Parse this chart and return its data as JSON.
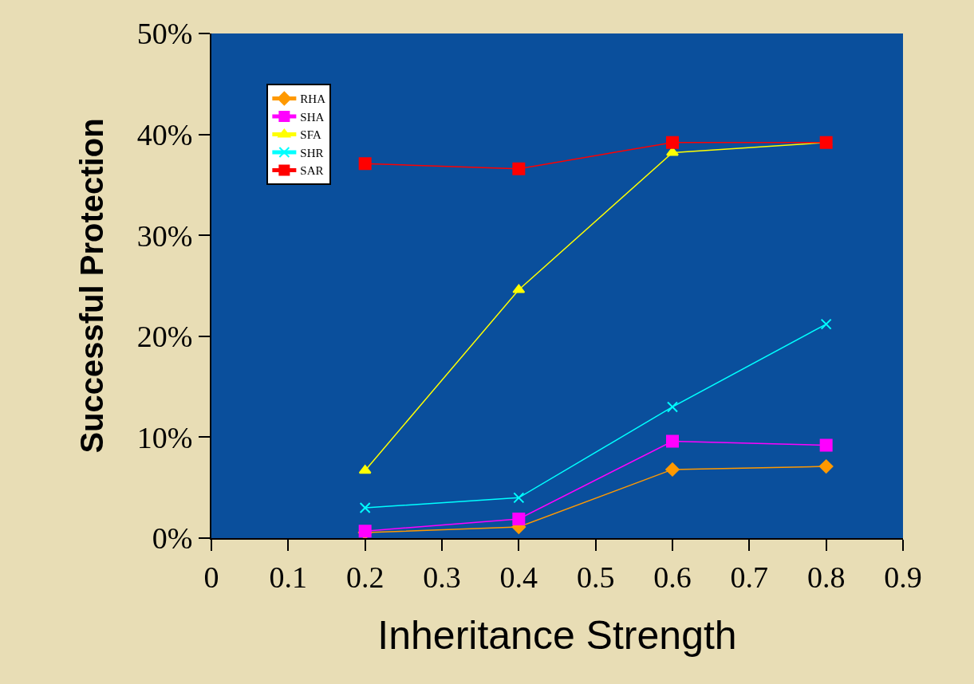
{
  "chart_data": {
    "type": "line",
    "xlabel": "Inheritance Strength",
    "ylabel": "Successful Protection",
    "x": [
      0.2,
      0.4,
      0.6,
      0.8
    ],
    "series": [
      {
        "name": "RHA",
        "color": "#ff9900",
        "marker": "diamond",
        "values": [
          0.55,
          1.1,
          6.8,
          7.1
        ]
      },
      {
        "name": "SHA",
        "color": "#ff00ff",
        "marker": "square",
        "values": [
          0.7,
          1.9,
          9.6,
          9.2
        ]
      },
      {
        "name": "SFA",
        "color": "#ffff00",
        "marker": "triangle",
        "values": [
          6.7,
          24.6,
          38.2,
          39.2
        ]
      },
      {
        "name": "SHR",
        "color": "#00ffff",
        "marker": "cross",
        "values": [
          3.0,
          4.0,
          13.0,
          21.2
        ]
      },
      {
        "name": "SAR",
        "color": "#ff0000",
        "marker": "square",
        "values": [
          37.1,
          36.6,
          39.2,
          39.2
        ]
      }
    ],
    "xlim": [
      0,
      0.9
    ],
    "xticks": [
      0,
      0.1,
      0.2,
      0.3,
      0.4,
      0.5,
      0.6,
      0.7,
      0.8,
      0.9
    ],
    "ylim": [
      0,
      50
    ],
    "yticks": [
      {
        "value": 0,
        "label": "0%"
      },
      {
        "value": 10,
        "label": "10%"
      },
      {
        "value": 20,
        "label": "20%"
      },
      {
        "value": 30,
        "label": "30%"
      },
      {
        "value": 40,
        "label": "40%"
      },
      {
        "value": 50,
        "label": "50%"
      }
    ],
    "grid": false,
    "legend": "top left",
    "line_style": "solid"
  }
}
